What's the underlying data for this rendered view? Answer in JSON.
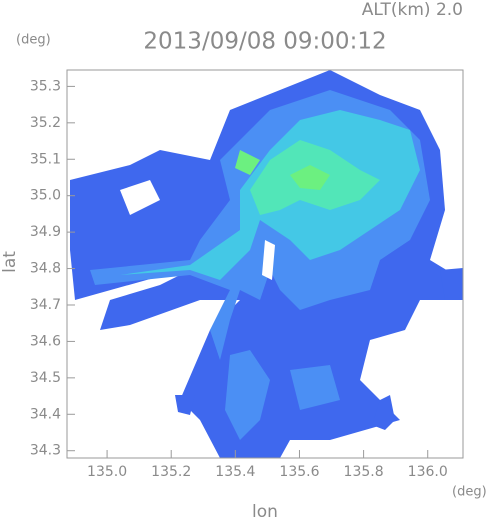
{
  "chart_data": {
    "type": "radar-map",
    "header": "ALT(km) 2.0",
    "title": "2013/09/08 09:00:12",
    "y_unit": "(deg)",
    "x_unit": "(deg)",
    "ylabel": "lat",
    "xlabel": "lon",
    "xlim": [
      134.875,
      136.11
    ],
    "ylim": [
      34.28,
      35.345
    ],
    "xticks": [
      {
        "value": 135.0,
        "label": "135.0"
      },
      135.2,
      135.4,
      135.6,
      135.8,
      {
        "value": 136.0,
        "label": "136.0"
      }
    ],
    "yticks": [
      34.3,
      34.4,
      34.5,
      34.6,
      34.7,
      34.8,
      34.9,
      {
        "value": 35.0,
        "label": "35.0"
      },
      35.1,
      35.2,
      35.3
    ]
  }
}
